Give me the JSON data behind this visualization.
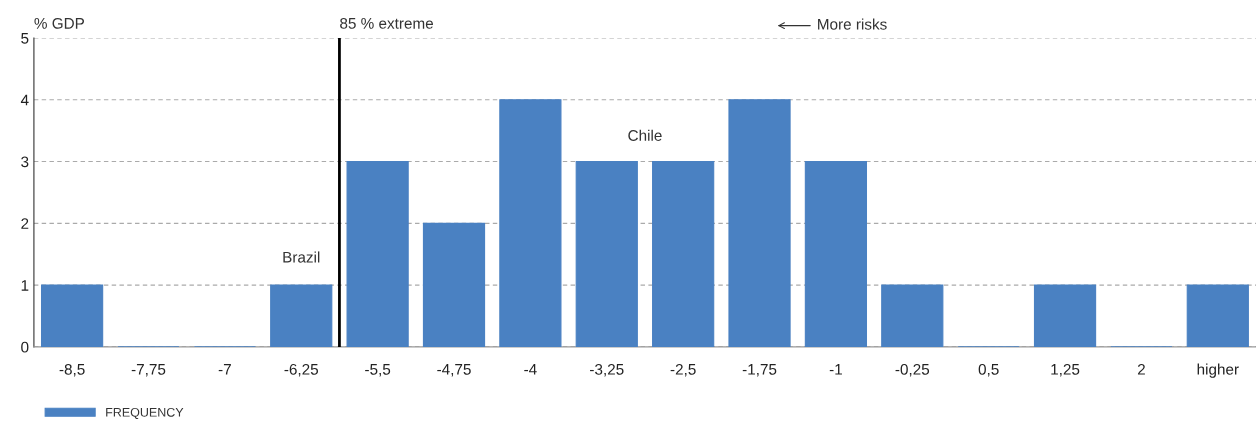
{
  "chart_data": {
    "type": "bar",
    "ylabel": "% GDP",
    "categories": [
      "-8,5",
      "-7,75",
      "-7",
      "-6,25",
      "-5,5",
      "-4,75",
      "-4",
      "-3,25",
      "-2,5",
      "-1,75",
      "-1",
      "-0,25",
      "0,5",
      "1,25",
      "2",
      "higher"
    ],
    "series": [
      {
        "name": "FREQUENCY",
        "color": "#4a81c2",
        "values": [
          1,
          0,
          0,
          1,
          3,
          2,
          4,
          3,
          3,
          4,
          3,
          1,
          0,
          1,
          0,
          1
        ]
      }
    ],
    "ylim": [
      0,
      5
    ],
    "yticks": [
      0,
      1,
      2,
      3,
      4,
      5
    ],
    "grid": "y",
    "legend": "bottom left",
    "ref_lines": [
      {
        "axis": "x",
        "value": "-6,25",
        "label": "85 % extreme",
        "color": "#000000"
      }
    ],
    "annotations": [
      {
        "text": "Brazil",
        "x": "-6,25",
        "y": 1
      },
      "Chile",
      "More risks"
    ]
  }
}
